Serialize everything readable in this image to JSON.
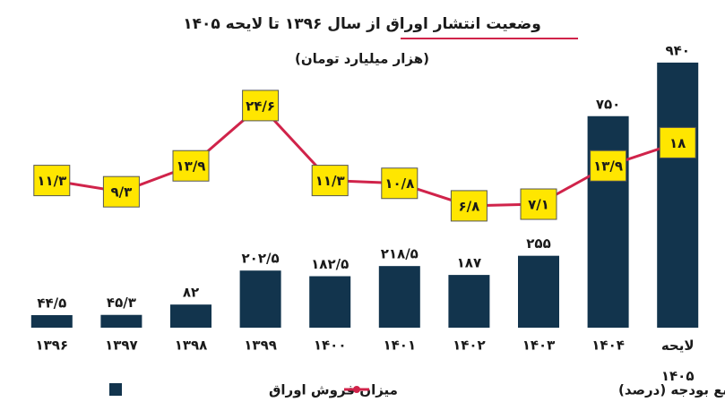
{
  "chart_data": {
    "type": "combo",
    "title": "وضعیت انتشار اوراق از سال ۱۳۹۶ تا لایحه ۱۴۰۵",
    "subtitle": "(هزار میلیارد تومان)",
    "categories": [
      "۱۳۹۶",
      "۱۳۹۷",
      "۱۳۹۸",
      "۱۳۹۹",
      "۱۴۰۰",
      "۱۴۰۱",
      "۱۴۰۲",
      "۱۴۰۳",
      "۱۴۰۴",
      "لایحه ۱۴۰۵"
    ],
    "series": [
      {
        "name": "میزان فروش اوراق",
        "type": "bar",
        "color": "#12344d",
        "values": [
          44.5,
          45.3,
          82,
          202.5,
          182.5,
          218.5,
          187,
          255,
          750,
          940
        ],
        "value_labels": [
          "۴۴/۵",
          "۴۵/۳",
          "۸۲",
          "۲۰۲/۵",
          "۱۸۲/۵",
          "۲۱۸/۵",
          "۱۸۷",
          "۲۵۵",
          "۷۵۰",
          "۹۴۰"
        ]
      },
      {
        "name": "سهم از کل منابع بودجه (درصد)",
        "type": "line",
        "axis": "y2",
        "color": "#d0234a",
        "values": [
          11.3,
          9.3,
          13.9,
          24.6,
          11.3,
          10.8,
          6.8,
          7.1,
          13.9,
          18
        ],
        "value_labels": [
          "۱۱/۳",
          "۹/۳",
          "۱۳/۹",
          "۲۴/۶",
          "۱۱/۳",
          "۱۰/۸",
          "۶/۸",
          "۷/۱",
          "۱۳/۹",
          "۱۸"
        ]
      }
    ],
    "ylim": [
      0,
      1000
    ],
    "y2lim": [
      0,
      40
    ],
    "label_color": "#ffe600"
  }
}
